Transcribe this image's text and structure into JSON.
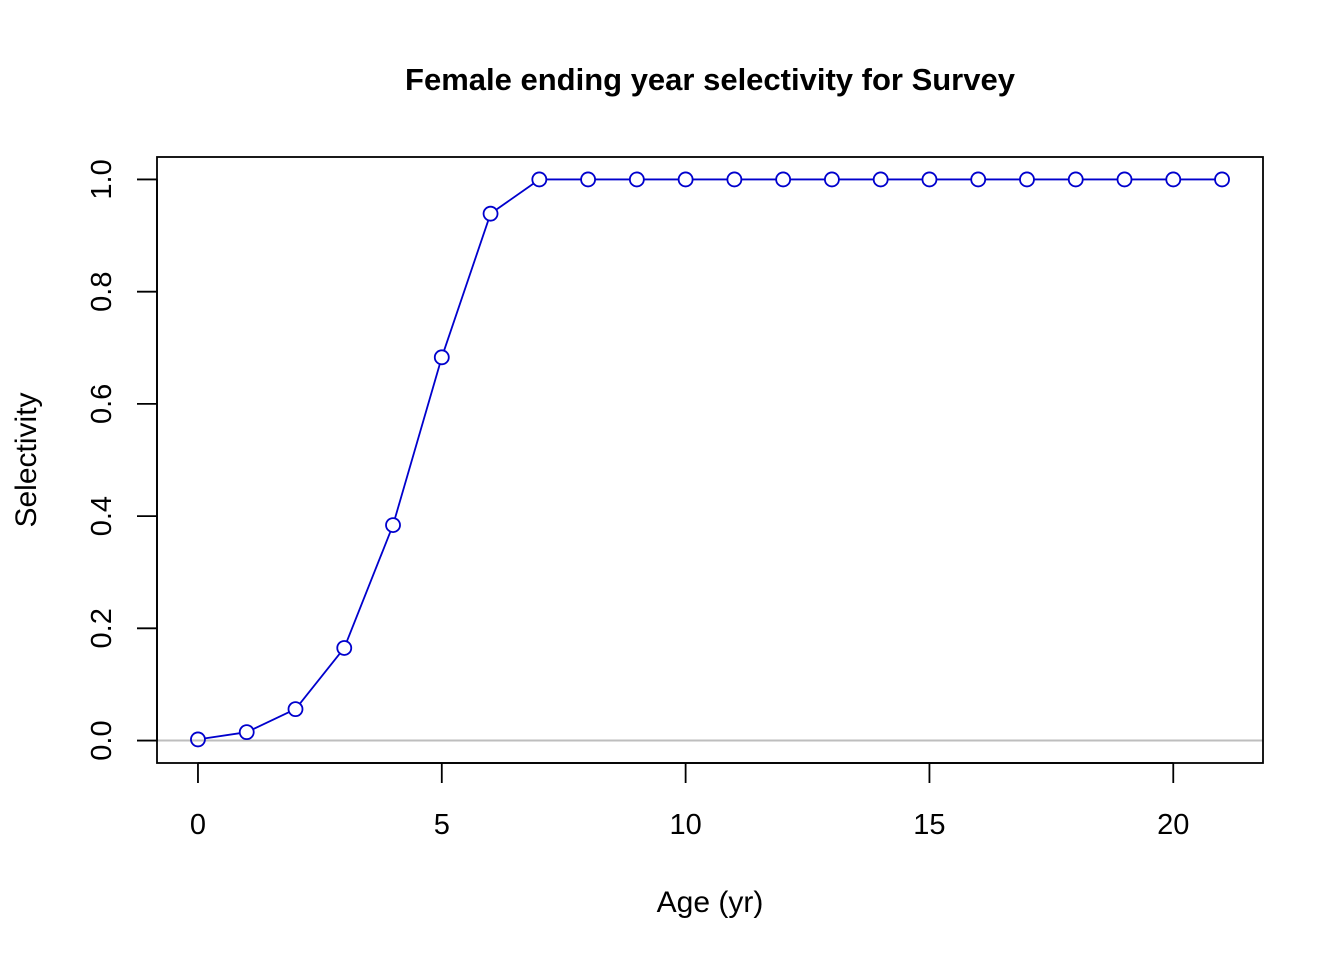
{
  "chart_data": {
    "type": "line",
    "title": "Female ending year selectivity for Survey",
    "xlabel": "Age (yr)",
    "ylabel": "Selectivity",
    "xlim": [
      -0.84,
      21.84
    ],
    "ylim": [
      -0.04,
      1.04
    ],
    "x_ticks": [
      0,
      5,
      10,
      15,
      20
    ],
    "x_tick_labels": [
      "0",
      "5",
      "10",
      "15",
      "20"
    ],
    "y_ticks": [
      0.0,
      0.2,
      0.4,
      0.6,
      0.8,
      1.0
    ],
    "y_tick_labels": [
      "0.0",
      "0.2",
      "0.4",
      "0.6",
      "0.8",
      "1.0"
    ],
    "grid": false,
    "reference_line": {
      "y": 0,
      "color": "#bebebe"
    },
    "series": [
      {
        "color": "#0000cd",
        "marker": "open-circle",
        "x": [
          0,
          1,
          2,
          3,
          4,
          5,
          6,
          7,
          8,
          9,
          10,
          11,
          12,
          13,
          14,
          15,
          16,
          17,
          18,
          19,
          20,
          21
        ],
        "values": [
          0.002,
          0.015,
          0.056,
          0.165,
          0.384,
          0.683,
          0.939,
          1.0,
          1.0,
          1.0,
          1.0,
          1.0,
          1.0,
          1.0,
          1.0,
          1.0,
          1.0,
          1.0,
          1.0,
          1.0,
          1.0,
          1.0
        ]
      }
    ]
  }
}
